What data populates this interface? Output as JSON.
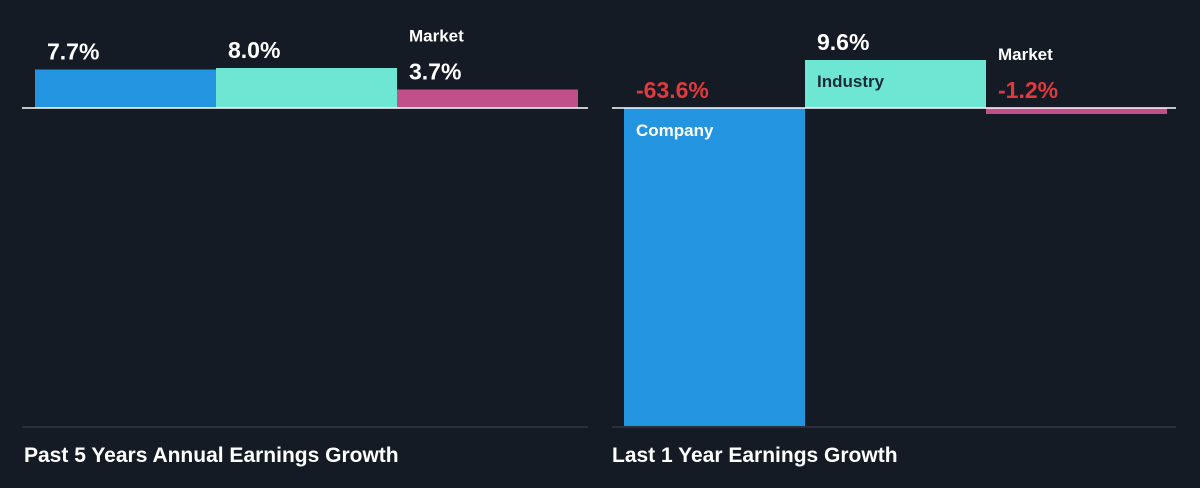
{
  "colors": {
    "background": "#151b24",
    "company": "#2394e0",
    "industry": "#6ee6d4",
    "market": "#c14f8a",
    "positive_text": "#ffffff",
    "negative_text": "#e0393e",
    "bar_label_dark": "#1e2a36",
    "bar_label_light": "#ffffff",
    "axis": "#ffffff",
    "baseline_bottom": "#3a4350"
  },
  "chart_data": [
    {
      "type": "bar",
      "title": "Past 5 Years Annual Earnings Growth",
      "categories": [
        "Company",
        "Industry",
        "Market"
      ],
      "values": [
        7.7,
        8.0,
        3.7
      ],
      "value_labels": [
        "7.7%",
        "8.0%",
        "3.7%"
      ],
      "visible_category_labels": [
        "",
        "",
        "Market"
      ],
      "ylim": [
        -63.6,
        9.6
      ],
      "grid": false,
      "legend": "none"
    },
    {
      "type": "bar",
      "title": "Last 1 Year Earnings Growth",
      "categories": [
        "Company",
        "Industry",
        "Market"
      ],
      "values": [
        -63.6,
        9.6,
        -1.2
      ],
      "value_labels": [
        "-63.6%",
        "9.6%",
        "-1.2%"
      ],
      "visible_category_labels": [
        "Company",
        "Industry",
        "Market"
      ],
      "ylim": [
        -63.6,
        9.6
      ],
      "grid": false,
      "legend": "none"
    }
  ]
}
